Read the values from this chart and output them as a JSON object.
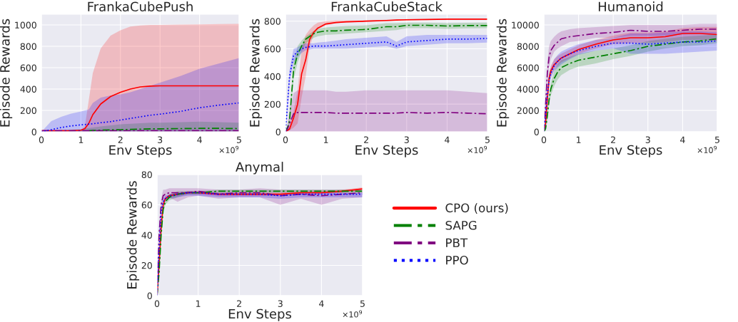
{
  "chart_data": [
    {
      "type": "line",
      "title": "FrankaCubePush",
      "xlabel": "Env Steps",
      "ylabel": "Episode Rewards",
      "annotations": [
        "×10$^{9}$"
      ],
      "xlim": [
        0,
        5
      ],
      "xticks": [
        0,
        1,
        2,
        3,
        4,
        5
      ],
      "ylim": [
        0,
        1100
      ],
      "yticks": [
        0,
        200,
        400,
        600,
        800,
        1000
      ],
      "grid": true,
      "legend": false,
      "x": [
        0,
        0.25,
        0.5,
        0.75,
        1,
        1.1,
        1.2,
        1.3,
        1.5,
        1.75,
        2,
        2.25,
        2.5,
        2.75,
        3,
        3.5,
        4,
        4.5,
        5
      ],
      "series": [
        {
          "color": "#ff0000",
          "line_style": "solid",
          "values": [
            10,
            10,
            10,
            10,
            15,
            30,
            80,
            160,
            260,
            330,
            370,
            400,
            420,
            428,
            430,
            430,
            430,
            430,
            430
          ],
          "lower": [
            0,
            0,
            0,
            0,
            0,
            0,
            0,
            0,
            0,
            0,
            0,
            0,
            0,
            0,
            0,
            0,
            0,
            0,
            0
          ],
          "upper": [
            10,
            10,
            10,
            10,
            15,
            50,
            300,
            550,
            780,
            900,
            950,
            985,
            995,
            1000,
            1000,
            1003,
            1005,
            1008,
            1010
          ]
        },
        {
          "color": "#008000",
          "line_style": "dashed",
          "values": [
            null,
            null,
            null,
            null,
            null,
            null,
            10,
            12,
            15,
            18,
            20,
            22,
            25,
            27,
            28,
            30,
            32,
            32,
            30
          ],
          "lower": [
            0,
            0,
            0,
            0,
            0,
            0,
            0,
            0,
            0,
            0,
            0,
            0,
            0,
            0,
            0,
            0,
            0,
            0,
            0
          ],
          "upper": [
            0,
            10,
            15,
            20,
            25,
            30,
            35,
            40,
            50,
            60,
            70,
            75,
            80,
            85,
            85,
            90,
            95,
            90,
            85
          ]
        },
        {
          "color": "#800080",
          "line_style": "dashed",
          "values": [
            10,
            10,
            10,
            10,
            10,
            10,
            10,
            10,
            10,
            10,
            10,
            10,
            10,
            10,
            10,
            10,
            10,
            10,
            10
          ],
          "lower": [
            0,
            0,
            0,
            0,
            0,
            0,
            0,
            0,
            0,
            0,
            0,
            0,
            0,
            0,
            0,
            0,
            0,
            0,
            0
          ],
          "upper": [
            20,
            20,
            20,
            20,
            20,
            20,
            20,
            20,
            20,
            20,
            20,
            20,
            20,
            20,
            20,
            20,
            20,
            20,
            20
          ]
        },
        {
          "color": "#0000ff",
          "line_style": "dotted",
          "values": [
            0,
            20,
            40,
            55,
            65,
            68,
            72,
            75,
            85,
            95,
            110,
            125,
            140,
            155,
            165,
            190,
            225,
            250,
            270
          ],
          "lower": [
            0,
            0,
            0,
            0,
            0,
            0,
            0,
            0,
            0,
            0,
            0,
            0,
            0,
            0,
            0,
            0,
            0,
            0,
            0
          ],
          "upper": [
            0,
            100,
            140,
            170,
            190,
            200,
            210,
            270,
            320,
            340,
            350,
            370,
            400,
            430,
            460,
            520,
            590,
            640,
            690
          ]
        }
      ]
    },
    {
      "type": "line",
      "title": "FrankaCubeStack",
      "xlabel": "Env Steps",
      "ylabel": "Episode Rewards",
      "annotations": [
        "×10$^{9}$"
      ],
      "xlim": [
        0,
        5
      ],
      "xticks": [
        0,
        1,
        2,
        3,
        4,
        5
      ],
      "ylim": [
        0,
        850
      ],
      "yticks": [
        0,
        200,
        400,
        600,
        800
      ],
      "grid": true,
      "legend": false,
      "x": [
        0,
        0.05,
        0.1,
        0.2,
        0.3,
        0.4,
        0.5,
        0.6,
        0.7,
        0.8,
        1,
        1.25,
        1.5,
        2,
        2.5,
        2.75,
        3,
        3.5,
        4,
        4.5,
        5
      ],
      "series": [
        {
          "color": "#ff0000",
          "line_style": "solid",
          "values": [
            0,
            10,
            20,
            100,
            200,
            420,
            520,
            670,
            720,
            750,
            780,
            790,
            795,
            800,
            805,
            808,
            810,
            812,
            815,
            815,
            815
          ],
          "lower": [
            0,
            5,
            10,
            30,
            60,
            250,
            400,
            620,
            700,
            740,
            770,
            785,
            790,
            795,
            800,
            805,
            805,
            810,
            810,
            810,
            810
          ],
          "upper": [
            0,
            20,
            40,
            150,
            300,
            600,
            700,
            740,
            770,
            790,
            800,
            805,
            805,
            805,
            810,
            812,
            815,
            815,
            818,
            818,
            818
          ]
        },
        {
          "color": "#008000",
          "line_style": "dashed",
          "values": [
            0,
            30,
            80,
            450,
            560,
            620,
            670,
            690,
            710,
            720,
            730,
            730,
            735,
            740,
            760,
            760,
            770,
            770,
            765,
            768,
            768
          ],
          "lower": [
            0,
            20,
            50,
            380,
            500,
            580,
            640,
            660,
            680,
            690,
            700,
            705,
            710,
            720,
            730,
            735,
            750,
            750,
            745,
            748,
            750
          ],
          "upper": [
            0,
            40,
            110,
            500,
            620,
            660,
            690,
            710,
            730,
            745,
            755,
            760,
            765,
            770,
            785,
            785,
            790,
            790,
            785,
            788,
            790
          ]
        },
        {
          "color": "#800080",
          "line_style": "dashed",
          "values": [
            0,
            20,
            60,
            130,
            140,
            140,
            140,
            140,
            140,
            140,
            140,
            135,
            135,
            135,
            135,
            135,
            140,
            135,
            140,
            135,
            130
          ],
          "lower": [
            0,
            0,
            0,
            0,
            0,
            0,
            0,
            0,
            0,
            0,
            0,
            0,
            0,
            0,
            0,
            0,
            0,
            0,
            0,
            0,
            0
          ],
          "upper": [
            0,
            50,
            150,
            280,
            300,
            300,
            300,
            300,
            300,
            300,
            300,
            290,
            290,
            300,
            300,
            300,
            300,
            300,
            300,
            290,
            280
          ]
        },
        {
          "color": "#0000ff",
          "line_style": "dotted",
          "values": [
            0,
            200,
            400,
            550,
            580,
            600,
            610,
            615,
            620,
            620,
            620,
            625,
            630,
            640,
            650,
            620,
            650,
            660,
            670,
            670,
            675
          ],
          "lower": [
            0,
            150,
            350,
            500,
            540,
            570,
            590,
            595,
            600,
            600,
            600,
            600,
            600,
            610,
            620,
            600,
            620,
            630,
            640,
            640,
            645
          ],
          "upper": [
            0,
            250,
            450,
            600,
            610,
            630,
            640,
            640,
            640,
            645,
            650,
            660,
            670,
            680,
            690,
            650,
            690,
            700,
            700,
            700,
            700
          ]
        }
      ]
    },
    {
      "type": "line",
      "title": "Humanoid",
      "xlabel": "Env Steps",
      "ylabel": "Episode Rewards",
      "annotations": [
        "×10$^{9}$"
      ],
      "xlim": [
        0,
        5
      ],
      "xticks": [
        0,
        1,
        2,
        3,
        4,
        5
      ],
      "ylim": [
        0,
        11000
      ],
      "yticks": [
        0,
        2000,
        4000,
        6000,
        8000,
        10000
      ],
      "grid": true,
      "legend": false,
      "x": [
        0,
        0.05,
        0.1,
        0.15,
        0.2,
        0.3,
        0.4,
        0.5,
        0.75,
        1,
        1.5,
        2,
        2.5,
        3,
        3.5,
        4,
        4.5,
        5
      ],
      "series": [
        {
          "color": "#ff0000",
          "line_style": "solid",
          "values": [
            0,
            800,
            3000,
            5000,
            5700,
            6300,
            6600,
            6900,
            7300,
            7700,
            8200,
            8600,
            8800,
            8800,
            8900,
            9200,
            9200,
            9100
          ],
          "lower": [
            0,
            500,
            2500,
            4500,
            5200,
            5800,
            6200,
            6500,
            6900,
            7300,
            7800,
            8200,
            8300,
            8300,
            8400,
            8600,
            8600,
            8500
          ],
          "upper": [
            0,
            1200,
            3500,
            5500,
            6200,
            6800,
            7100,
            7300,
            7700,
            8100,
            8600,
            9000,
            9300,
            9300,
            9400,
            9700,
            9800,
            9800
          ]
        },
        {
          "color": "#008000",
          "line_style": "dashed",
          "values": [
            0,
            300,
            1500,
            3000,
            4000,
            5000,
            5600,
            6000,
            6400,
            6700,
            7000,
            7300,
            7600,
            8000,
            8200,
            8400,
            8500,
            8700
          ],
          "lower": [
            0,
            100,
            1000,
            2500,
            3400,
            4300,
            4900,
            5300,
            5800,
            6100,
            6400,
            6800,
            7100,
            7500,
            7800,
            8000,
            8100,
            8300
          ],
          "upper": [
            0,
            500,
            2000,
            3500,
            4600,
            5700,
            6300,
            6700,
            7000,
            7300,
            7600,
            7800,
            8100,
            8500,
            8700,
            8900,
            9000,
            9100
          ]
        },
        {
          "color": "#800080",
          "line_style": "dashed",
          "values": [
            0,
            2500,
            5500,
            7000,
            7600,
            8100,
            8400,
            8700,
            8900,
            9000,
            9200,
            9300,
            9500,
            9400,
            9400,
            9500,
            9600,
            9600
          ],
          "lower": [
            0,
            1500,
            4500,
            6000,
            6800,
            7500,
            7800,
            8000,
            8400,
            8500,
            8800,
            8800,
            9000,
            9000,
            9000,
            9100,
            9200,
            9200
          ],
          "upper": [
            0,
            3500,
            6500,
            8000,
            8500,
            8900,
            9200,
            9400,
            9600,
            9700,
            9800,
            9900,
            10000,
            10000,
            10000,
            10000,
            10100,
            10100
          ]
        },
        {
          "color": "#0000ff",
          "line_style": "dotted",
          "values": [
            0,
            1500,
            3500,
            4800,
            5500,
            6200,
            6600,
            6900,
            7300,
            7600,
            8000,
            8300,
            8300,
            8200,
            8300,
            8400,
            8400,
            8500
          ],
          "lower": [
            0,
            1000,
            2800,
            4200,
            5000,
            5700,
            6000,
            6300,
            6800,
            7200,
            7600,
            7800,
            7300,
            7300,
            7300,
            7400,
            7500,
            7600
          ],
          "upper": [
            0,
            2000,
            4200,
            5400,
            6000,
            6800,
            7200,
            7500,
            7900,
            8200,
            8600,
            8800,
            9200,
            9200,
            9300,
            9400,
            9400,
            9300
          ]
        }
      ]
    },
    {
      "type": "line",
      "title": "Anymal",
      "xlabel": "Env Steps",
      "ylabel": "Episode Rewards",
      "annotations": [
        "×10$^{9}$"
      ],
      "xlim": [
        0,
        5
      ],
      "xticks": [
        0,
        1,
        2,
        3,
        4,
        5
      ],
      "ylim": [
        0,
        80
      ],
      "yticks": [
        0,
        20,
        40,
        60,
        80
      ],
      "grid": true,
      "legend": "right",
      "x": [
        0,
        0.05,
        0.1,
        0.15,
        0.2,
        0.3,
        0.5,
        0.75,
        1,
        1.5,
        2,
        2.5,
        3,
        3.5,
        4,
        4.5,
        5
      ],
      "series": [
        {
          "name": "CPO (ours)",
          "color": "#ff0000",
          "line_style": "solid",
          "values": [
            0,
            20,
            45,
            60,
            64,
            66,
            67,
            68,
            68,
            67,
            67,
            67,
            67,
            68,
            68,
            69,
            70.5
          ],
          "lower": [
            0,
            18,
            42,
            58,
            63,
            65,
            66,
            67,
            67,
            66,
            66,
            66,
            66,
            67,
            67,
            68,
            69.5
          ],
          "upper": [
            0,
            22,
            48,
            62,
            65,
            67,
            68,
            69,
            69,
            68,
            68,
            68,
            68,
            69,
            69,
            70,
            71.5
          ]
        },
        {
          "name": "SAPG",
          "color": "#008000",
          "line_style": "dashed",
          "values": [
            0,
            15,
            40,
            57,
            62,
            65,
            67,
            68,
            68,
            69,
            69,
            69,
            69,
            69,
            69,
            69,
            69
          ],
          "lower": [
            0,
            12,
            37,
            55,
            60,
            63,
            65,
            67,
            67,
            68,
            68,
            68,
            68,
            68,
            68,
            68,
            68
          ],
          "upper": [
            0,
            18,
            43,
            59,
            64,
            67,
            69,
            69,
            69,
            70,
            70,
            70,
            70,
            70,
            70,
            70,
            70
          ]
        },
        {
          "name": "PBT",
          "color": "#800080",
          "line_style": "dashed",
          "values": [
            0,
            40,
            60,
            66,
            67,
            68,
            68,
            68,
            69,
            67,
            68,
            68,
            66,
            67,
            66,
            67,
            68
          ],
          "lower": [
            0,
            35,
            56,
            62,
            63,
            65,
            62,
            65,
            66,
            64,
            65,
            65,
            60,
            64,
            60,
            64,
            65
          ],
          "upper": [
            0,
            45,
            64,
            70,
            70,
            71,
            71,
            71,
            71,
            70,
            70,
            71,
            70,
            70,
            70,
            70,
            70
          ]
        },
        {
          "name": "PPO",
          "color": "#0000ff",
          "line_style": "dotted",
          "values": [
            0,
            30,
            55,
            62,
            64,
            66,
            67,
            68,
            68,
            67,
            67,
            67,
            66,
            67,
            67,
            67,
            67
          ],
          "lower": [
            0,
            27,
            52,
            60,
            62,
            64,
            65,
            66,
            66,
            65,
            65,
            65,
            64,
            65,
            65,
            65,
            65
          ],
          "upper": [
            0,
            33,
            58,
            64,
            66,
            67,
            68,
            69,
            69,
            68,
            68,
            68,
            67,
            68,
            68,
            68,
            68
          ]
        }
      ]
    }
  ]
}
